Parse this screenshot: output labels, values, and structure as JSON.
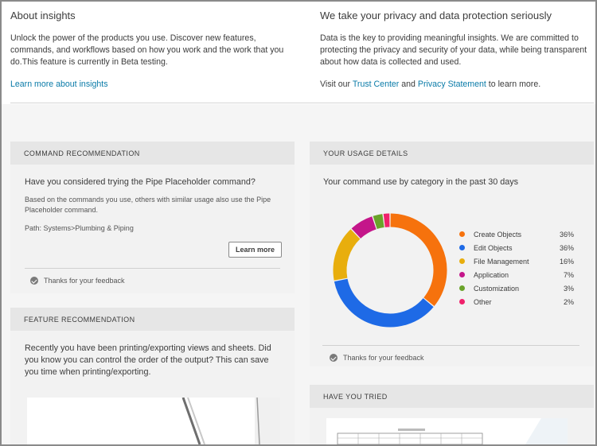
{
  "about": {
    "title": "About insights",
    "body": "Unlock the power of the products you use. Discover new features, commands, and workflows based on how you work and the work that you do.This feature is currently in Beta testing.",
    "link": "Learn more about insights"
  },
  "privacy": {
    "title": "We take your privacy and data protection seriously",
    "body": "Data is the key to providing meaningful insights. We are committed to protecting the privacy and security of your data, while being transparent about how data is collected and used.",
    "visit_prefix": "Visit our ",
    "trust_center": "Trust Center",
    "and": " and ",
    "privacy_statement": "Privacy Statement",
    "visit_suffix": " to learn more."
  },
  "command_rec": {
    "header": "COMMAND RECOMMENDATION",
    "question": "Have you considered trying the Pipe Placeholder command?",
    "description": "Based on the commands you use, others with similar usage also use the Pipe Placeholder command.",
    "path": "Path: Systems>Plumbing & Piping",
    "button": "Learn more",
    "feedback": "Thanks for your feedback"
  },
  "feature_rec": {
    "header": "FEATURE RECOMMENDATION",
    "body": "Recently you have been printing/exporting views and sheets. Did you know you can control the order of the output? This can save you time when printing/exporting."
  },
  "usage": {
    "header": "YOUR USAGE DETAILS",
    "subtitle": "Your command use by category in the past 30 days",
    "feedback": "Thanks for your feedback"
  },
  "have_you_tried": {
    "header": "HAVE YOU TRIED"
  },
  "chart_data": {
    "type": "pie",
    "style": "donut",
    "title": "",
    "categories": [
      "Create Objects",
      "Edit Objects",
      "File Management",
      "Application",
      "Customization",
      "Other"
    ],
    "values": [
      36,
      36,
      16,
      7,
      3,
      2
    ],
    "labels": [
      "36%",
      "36%",
      "16%",
      "7%",
      "3%",
      "2%"
    ],
    "colors": [
      "#f6720d",
      "#1e6ae6",
      "#e8ae0d",
      "#c4168a",
      "#6aa32a",
      "#f0216b"
    ],
    "legend": "right"
  }
}
